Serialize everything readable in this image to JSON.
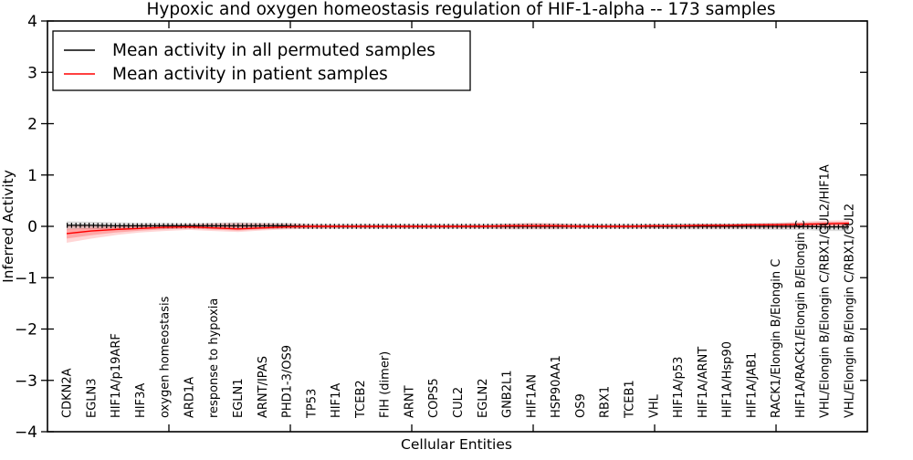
{
  "title": "Hypoxic and oxygen homeostasis regulation of HIF-1-alpha -- 173 samples",
  "axes": {
    "ylabel": "Inferred Activity",
    "xlabel": "Cellular Entities",
    "ylim": [
      -4,
      4
    ],
    "yticks": [
      4,
      3,
      2,
      1,
      0,
      -1,
      -2,
      -3,
      -4
    ]
  },
  "legend": {
    "items": [
      {
        "label": "Mean activity in all permuted samples",
        "color": "#000000"
      },
      {
        "label": "Mean activity in patient samples",
        "color": "#ff0000"
      }
    ]
  },
  "chart_data": {
    "type": "line",
    "title": "Hypoxic and oxygen homeostasis regulation of HIF-1-alpha -- 173 samples",
    "xlabel": "Cellular Entities",
    "ylabel": "Inferred Activity",
    "ylim": [
      -4,
      4
    ],
    "grid": false,
    "legend_position": "upper left",
    "categories": [
      "CDKN2A",
      "EGLN3",
      "HIF1A/p19ARF",
      "HIF3A",
      "oxygen homeostasis",
      "ARD1A",
      "response to hypoxia",
      "EGLN1",
      "ARNT/IPAS",
      "PHD1-3/OS9",
      "TP53",
      "HIF1A",
      "TCEB2",
      "FIH (dimer)",
      "ARNT",
      "COPS5",
      "CUL2",
      "EGLN2",
      "GNB2L1",
      "HIF1AN",
      "HSP90AA1",
      "OS9",
      "RBX1",
      "TCEB1",
      "VHL",
      "HIF1A/p53",
      "HIF1A/ARNT",
      "HIF1A/Hsp90",
      "HIF1A/JAB1",
      "RACK1/Elongin B/Elongin C",
      "HIF1A/RACK1/Elongin B/Elongin C",
      "VHL/Elongin B/Elongin C/RBX1/CUL2/HIF1A",
      "VHL/Elongin B/Elongin C/RBX1/CUL2"
    ],
    "series": [
      {
        "name": "Mean activity in all permuted samples",
        "color": "#000000",
        "values": [
          0.02,
          0.02,
          0.01,
          0.01,
          0.01,
          0.01,
          0.01,
          0.01,
          0.01,
          0.01,
          0,
          0,
          0,
          0,
          0,
          0,
          0,
          0,
          0,
          0,
          0,
          0,
          0,
          0,
          0,
          0,
          0,
          0,
          0,
          0,
          0,
          -0.01,
          -0.01
        ],
        "band_halfwidth": [
          0.08,
          0.07,
          0.07,
          0.06,
          0.06,
          0.05,
          0.06,
          0.07,
          0.06,
          0.06,
          0.05,
          0.05,
          0.05,
          0.05,
          0.05,
          0.05,
          0.05,
          0.05,
          0.06,
          0.06,
          0.06,
          0.05,
          0.05,
          0.05,
          0.05,
          0.06,
          0.06,
          0.06,
          0.06,
          0.07,
          0.07,
          0.08,
          0.08
        ]
      },
      {
        "name": "Mean activity in patient samples",
        "color": "#ff0000",
        "values": [
          -0.14,
          -0.09,
          -0.06,
          -0.04,
          -0.02,
          -0.01,
          -0.03,
          -0.05,
          -0.03,
          -0.01,
          0,
          0,
          0,
          0,
          0,
          0,
          0,
          0,
          0.01,
          0.01,
          0.01,
          0,
          0,
          0,
          0.01,
          0.01,
          0.02,
          0.02,
          0.03,
          0.03,
          0.04,
          0.05,
          0.06
        ],
        "band_upper": [
          0.02,
          0.02,
          0.02,
          0.03,
          0.03,
          0.04,
          0.06,
          0.07,
          0.06,
          0.05,
          0.04,
          0.03,
          0.03,
          0.03,
          0.03,
          0.03,
          0.03,
          0.03,
          0.05,
          0.07,
          0.06,
          0.04,
          0.03,
          0.03,
          0.04,
          0.04,
          0.05,
          0.05,
          0.06,
          0.07,
          0.09,
          0.11,
          0.12
        ],
        "band_lower": [
          -0.32,
          -0.24,
          -0.17,
          -0.12,
          -0.09,
          -0.07,
          -0.09,
          -0.11,
          -0.08,
          -0.06,
          -0.05,
          -0.04,
          -0.04,
          -0.04,
          -0.04,
          -0.04,
          -0.04,
          -0.04,
          -0.05,
          -0.05,
          -0.05,
          -0.04,
          -0.04,
          -0.04,
          -0.04,
          -0.04,
          -0.04,
          -0.04,
          -0.04,
          -0.04,
          -0.03,
          -0.02,
          -0.02
        ]
      }
    ]
  }
}
